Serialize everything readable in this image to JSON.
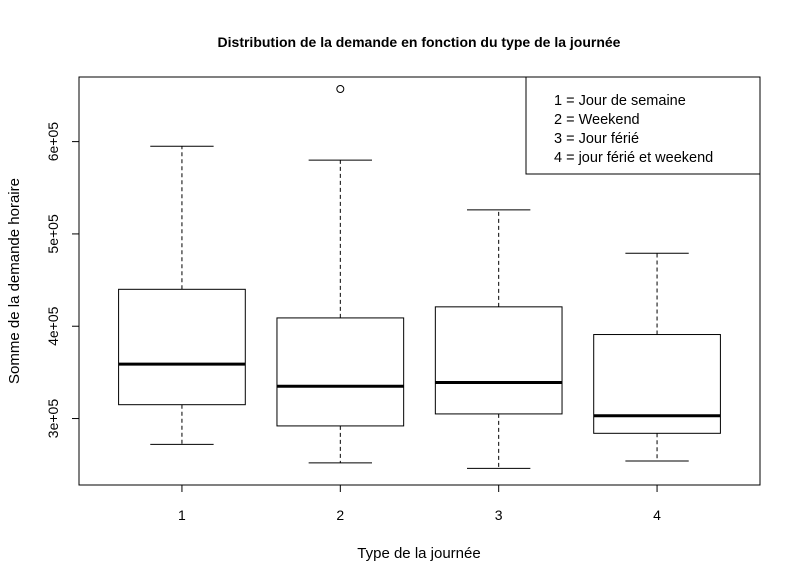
{
  "chart_data": {
    "type": "boxplot",
    "title": "Distribution de la demande en fonction du type de la journée",
    "xlabel": "Type de la journée",
    "ylabel": "Somme de la demande horaire",
    "categories": [
      "1",
      "2",
      "3",
      "4"
    ],
    "boxes": [
      {
        "category": "1",
        "whisker_low": 272000,
        "q1": 315000,
        "median": 359000,
        "q3": 440000,
        "whisker_high": 595000,
        "outliers": []
      },
      {
        "category": "2",
        "whisker_low": 252000,
        "q1": 292000,
        "median": 335000,
        "q3": 409000,
        "whisker_high": 580000,
        "outliers": [
          657000
        ]
      },
      {
        "category": "3",
        "whisker_low": 246000,
        "q1": 305000,
        "median": 339000,
        "q3": 421000,
        "whisker_high": 526000,
        "outliers": []
      },
      {
        "category": "4",
        "whisker_low": 254000,
        "q1": 284000,
        "median": 303000,
        "q3": 391000,
        "whisker_high": 479000,
        "outliers": []
      }
    ],
    "yticks": [
      {
        "value": 300000,
        "label": "3e+05"
      },
      {
        "value": 400000,
        "label": "4e+05"
      },
      {
        "value": 500000,
        "label": "5e+05"
      },
      {
        "value": 600000,
        "label": "6e+05"
      }
    ],
    "ylim": [
      228000,
      670000
    ],
    "xlim": [
      0.35,
      4.65
    ],
    "grid": false,
    "legend_position": "top-right",
    "legend_entries": [
      "1 = Jour de semaine",
      "2 = Weekend",
      "3 = Jour férié",
      "4 = jour férié et weekend"
    ],
    "colors": {
      "line": "#000000",
      "box_fill": "#ffffff",
      "background": "#ffffff"
    }
  }
}
